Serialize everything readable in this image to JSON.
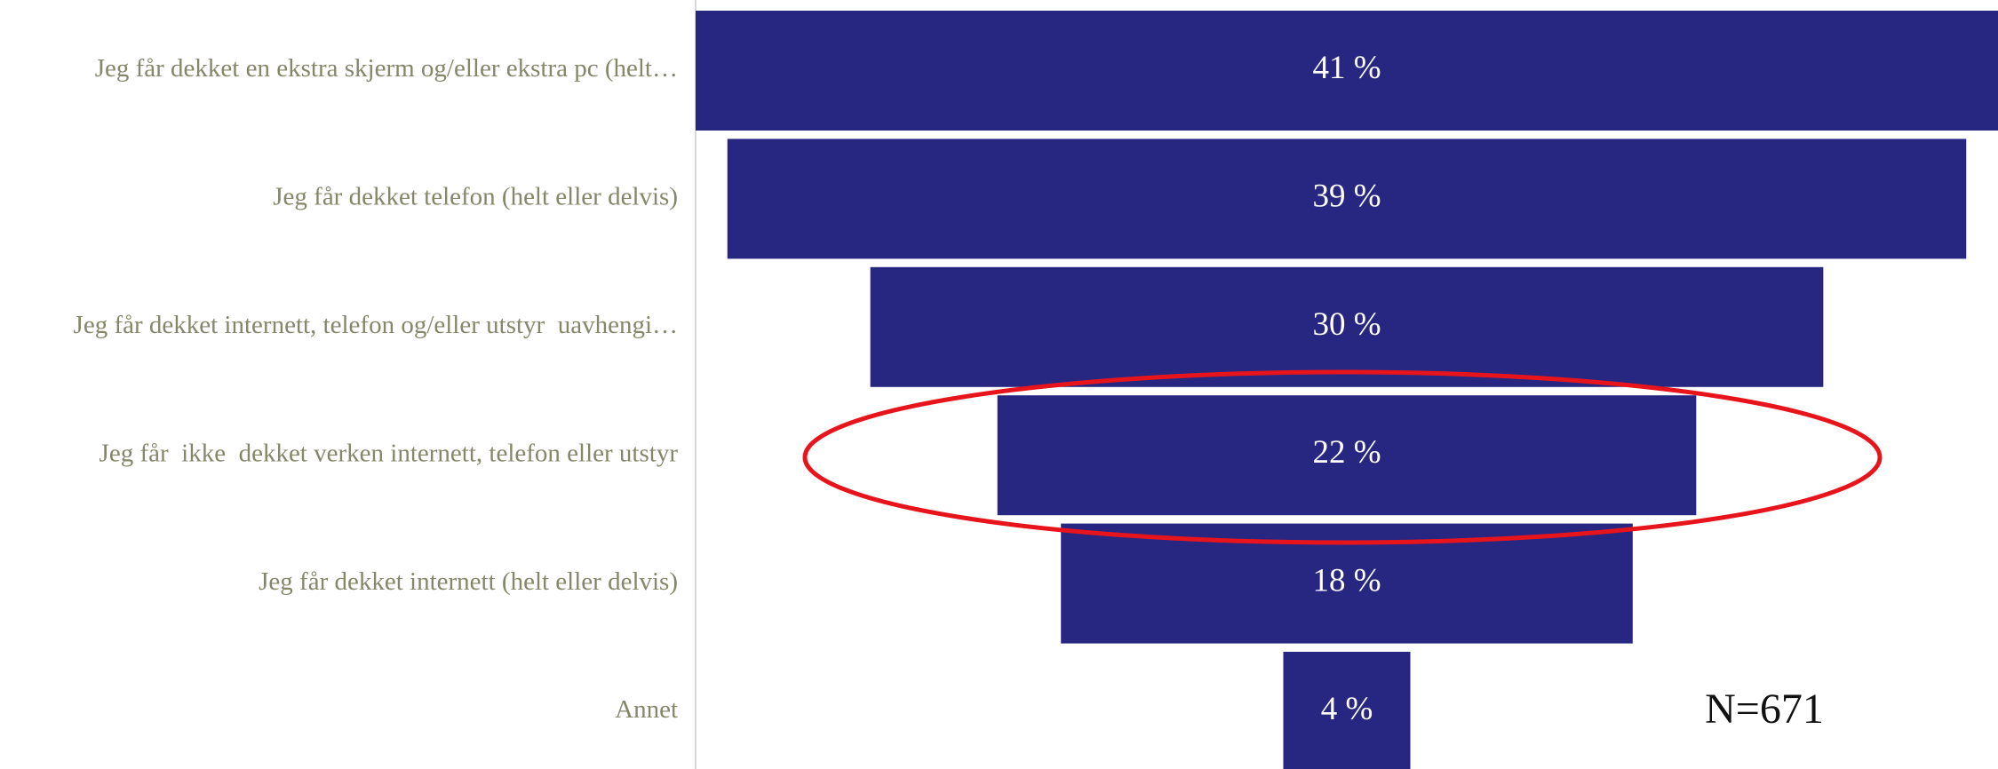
{
  "chart_data": {
    "type": "funnel",
    "categories": [
      "Jeg får dekket en ekstra skjerm og/eller ekstra pc (helt…",
      "Jeg får dekket telefon (helt eller delvis)",
      "Jeg får dekket internett, telefon og/eller utstyr  uavhengi…",
      "Jeg får  ikke  dekket verken internett, telefon eller utstyr",
      "Jeg får dekket internett (helt eller delvis)",
      "Annet"
    ],
    "values": [
      41,
      39,
      30,
      22,
      18,
      4
    ],
    "value_labels": [
      "41 %",
      "39 %",
      "30 %",
      "22 %",
      "18 %",
      "4 %"
    ],
    "color": "#272782",
    "annotation": "N=671"
  }
}
